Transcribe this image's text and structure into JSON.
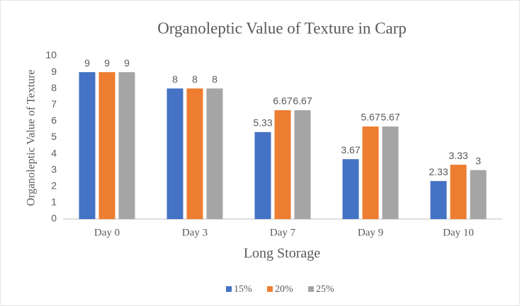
{
  "chart_data": {
    "type": "bar",
    "title": "Organoleptic Value of Texture in Carp",
    "x_label": "Long Storage",
    "y_label": "Organoleptic Value of Texture",
    "categories": [
      "Day 0",
      "Day 3",
      "Day 7",
      "Day 9",
      "Day 10"
    ],
    "series": [
      {
        "name": "15%",
        "color": "#4472c4",
        "values": [
          9,
          8,
          5.33,
          3.67,
          2.33
        ]
      },
      {
        "name": "20%",
        "color": "#ed7d31",
        "values": [
          9,
          8,
          6.67,
          5.67,
          3.33
        ]
      },
      {
        "name": "25%",
        "color": "#a5a5a5",
        "values": [
          9,
          8,
          6.67,
          5.67,
          3
        ]
      }
    ],
    "ylim": [
      0,
      10
    ],
    "yticks": [
      0,
      1,
      2,
      3,
      4,
      5,
      6,
      7,
      8,
      9,
      10
    ],
    "grid": false,
    "legend": "bottom"
  }
}
